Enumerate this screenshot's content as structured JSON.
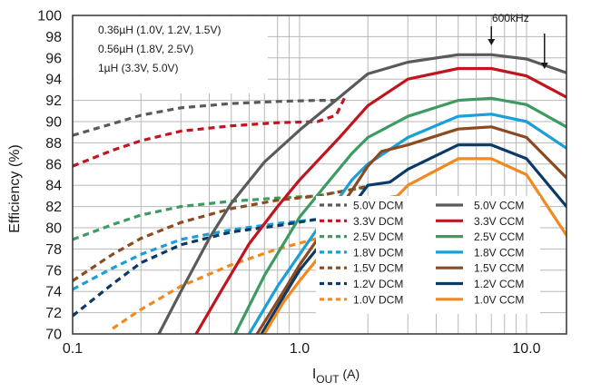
{
  "chart_data": {
    "type": "line",
    "xlabel": "I",
    "xlabel_sub": "OUT",
    "xlabel_unit": " (A)",
    "ylabel": "Efficiency (%)",
    "xscale": "log",
    "xlim": [
      0.1,
      15
    ],
    "ylim": [
      70,
      100
    ],
    "grid": true,
    "x_ticks": [
      {
        "value": 0.1,
        "label": "0.1"
      },
      {
        "value": 1.0,
        "label": "1.0"
      },
      {
        "value": 10.0,
        "label": "10.0"
      }
    ],
    "y_ticks": [
      70,
      72,
      74,
      76,
      78,
      80,
      82,
      84,
      86,
      88,
      90,
      92,
      94,
      96,
      98,
      100
    ],
    "inductor_notes": [
      "0.36µH (1.0V, 1.2V, 1.5V)",
      "0.56µH (1.8V, 2.5V)",
      "1µH (3.3V, 5.0V)"
    ],
    "annotation": {
      "text": "600kHz",
      "arrows_at_x": [
        7.0,
        12.0
      ]
    },
    "legend_position": "lower-right",
    "series": [
      {
        "name": "5.0V DCM",
        "style": "dashed",
        "color": "#5a5a5a",
        "points": [
          [
            0.1,
            88.7
          ],
          [
            0.15,
            89.8
          ],
          [
            0.2,
            90.6
          ],
          [
            0.3,
            91.3
          ],
          [
            0.5,
            91.7
          ],
          [
            0.8,
            91.9
          ],
          [
            1.2,
            92.0
          ],
          [
            1.5,
            92.0
          ]
        ]
      },
      {
        "name": "3.3V DCM",
        "style": "dashed",
        "color": "#c0141e",
        "points": [
          [
            0.1,
            85.8
          ],
          [
            0.15,
            87.3
          ],
          [
            0.2,
            88.2
          ],
          [
            0.3,
            89.1
          ],
          [
            0.5,
            89.6
          ],
          [
            0.8,
            89.9
          ],
          [
            1.2,
            90.0
          ],
          [
            1.45,
            90.6
          ],
          [
            1.6,
            92.5
          ]
        ]
      },
      {
        "name": "2.5V DCM",
        "style": "dashed",
        "color": "#3d9b62",
        "points": [
          [
            0.1,
            78.9
          ],
          [
            0.15,
            80.3
          ],
          [
            0.2,
            81.2
          ],
          [
            0.3,
            82.0
          ],
          [
            0.5,
            82.5
          ],
          [
            0.8,
            82.8
          ],
          [
            1.2,
            83.0
          ],
          [
            1.6,
            83.5
          ],
          [
            2.0,
            83.8
          ]
        ]
      },
      {
        "name": "1.8V DCM",
        "style": "dashed",
        "color": "#1a9fd8",
        "points": [
          [
            0.1,
            74.2
          ],
          [
            0.15,
            76.2
          ],
          [
            0.2,
            77.5
          ],
          [
            0.3,
            78.9
          ],
          [
            0.5,
            79.8
          ],
          [
            0.8,
            80.4
          ],
          [
            1.2,
            80.8
          ],
          [
            1.4,
            81.5
          ]
        ]
      },
      {
        "name": "1.5V DCM",
        "style": "dashed",
        "color": "#8c4a20",
        "points": [
          [
            0.1,
            75.0
          ],
          [
            0.15,
            77.5
          ],
          [
            0.2,
            79.0
          ],
          [
            0.3,
            80.5
          ],
          [
            0.5,
            81.8
          ],
          [
            0.8,
            82.6
          ],
          [
            1.2,
            83.0
          ],
          [
            1.6,
            83.5
          ],
          [
            2.0,
            83.9
          ]
        ]
      },
      {
        "name": "1.2V DCM",
        "style": "dashed",
        "color": "#0b3a66",
        "points": [
          [
            0.1,
            71.7
          ],
          [
            0.15,
            74.7
          ],
          [
            0.2,
            76.7
          ],
          [
            0.3,
            78.4
          ],
          [
            0.5,
            79.6
          ],
          [
            0.8,
            80.2
          ],
          [
            1.2,
            80.8
          ],
          [
            1.6,
            81.5
          ],
          [
            1.8,
            82.5
          ]
        ]
      },
      {
        "name": "1.0V DCM",
        "style": "dashed",
        "color": "#f08a1e",
        "points": [
          [
            0.15,
            70.5
          ],
          [
            0.2,
            72.3
          ],
          [
            0.3,
            74.5
          ],
          [
            0.5,
            76.5
          ],
          [
            0.8,
            78.0
          ],
          [
            1.2,
            79.0
          ],
          [
            1.6,
            79.7
          ],
          [
            1.9,
            80.3
          ]
        ]
      },
      {
        "name": "5.0V CCM",
        "style": "solid",
        "color": "#5a5a5a",
        "points": [
          [
            0.24,
            70.0
          ],
          [
            0.3,
            74.0
          ],
          [
            0.4,
            79.0
          ],
          [
            0.5,
            82.3
          ],
          [
            0.7,
            86.2
          ],
          [
            1.0,
            89.2
          ],
          [
            1.5,
            92.3
          ],
          [
            2.0,
            94.5
          ],
          [
            3.0,
            95.6
          ],
          [
            5.0,
            96.3
          ],
          [
            7.0,
            96.3
          ],
          [
            10.0,
            95.9
          ],
          [
            15.0,
            94.6
          ]
        ]
      },
      {
        "name": "3.3V CCM",
        "style": "solid",
        "color": "#c0141e",
        "points": [
          [
            0.35,
            70.0
          ],
          [
            0.45,
            74.0
          ],
          [
            0.6,
            78.5
          ],
          [
            0.8,
            82.0
          ],
          [
            1.0,
            84.5
          ],
          [
            1.5,
            88.5
          ],
          [
            2.0,
            91.5
          ],
          [
            3.0,
            94.0
          ],
          [
            5.0,
            95.0
          ],
          [
            7.0,
            95.0
          ],
          [
            10.0,
            94.3
          ],
          [
            15.0,
            92.3
          ]
        ]
      },
      {
        "name": "2.5V CCM",
        "style": "solid",
        "color": "#3d9b62",
        "points": [
          [
            0.52,
            70.0
          ],
          [
            0.7,
            75.5
          ],
          [
            1.0,
            81.0
          ],
          [
            1.3,
            84.0
          ],
          [
            1.7,
            87.0
          ],
          [
            2.0,
            88.5
          ],
          [
            3.0,
            90.5
          ],
          [
            5.0,
            92.0
          ],
          [
            7.0,
            92.2
          ],
          [
            10.0,
            91.6
          ],
          [
            15.0,
            89.5
          ]
        ]
      },
      {
        "name": "1.8V CCM",
        "style": "solid",
        "color": "#1a9fd8",
        "points": [
          [
            0.6,
            70.0
          ],
          [
            0.8,
            74.5
          ],
          [
            1.0,
            77.5
          ],
          [
            1.3,
            81.0
          ],
          [
            1.7,
            84.5
          ],
          [
            2.0,
            86.0
          ],
          [
            3.0,
            88.5
          ],
          [
            5.0,
            90.5
          ],
          [
            7.0,
            90.7
          ],
          [
            10.0,
            90.0
          ],
          [
            15.0,
            87.5
          ]
        ]
      },
      {
        "name": "1.5V CCM",
        "style": "solid",
        "color": "#8c4a20",
        "points": [
          [
            0.65,
            70.0
          ],
          [
            0.85,
            74.0
          ],
          [
            1.0,
            76.5
          ],
          [
            1.3,
            80.0
          ],
          [
            1.7,
            83.5
          ],
          [
            2.0,
            85.8
          ],
          [
            2.3,
            87.2
          ],
          [
            3.0,
            87.8
          ],
          [
            5.0,
            89.3
          ],
          [
            7.0,
            89.5
          ],
          [
            10.0,
            88.5
          ],
          [
            15.0,
            84.7
          ]
        ]
      },
      {
        "name": "1.2V CCM",
        "style": "solid",
        "color": "#0b3a66",
        "points": [
          [
            0.68,
            70.0
          ],
          [
            0.85,
            73.5
          ],
          [
            1.0,
            76.0
          ],
          [
            1.3,
            79.0
          ],
          [
            1.7,
            82.0
          ],
          [
            2.0,
            84.0
          ],
          [
            2.5,
            84.3
          ],
          [
            3.0,
            85.5
          ],
          [
            5.0,
            87.8
          ],
          [
            7.0,
            87.8
          ],
          [
            10.0,
            86.5
          ],
          [
            15.0,
            82.0
          ]
        ]
      },
      {
        "name": "1.0V CCM",
        "style": "solid",
        "color": "#f08a1e",
        "points": [
          [
            0.7,
            70.0
          ],
          [
            0.85,
            73.0
          ],
          [
            1.0,
            75.0
          ],
          [
            1.3,
            78.0
          ],
          [
            1.7,
            81.0
          ],
          [
            2.0,
            82.5
          ],
          [
            2.7,
            83.0
          ],
          [
            3.0,
            84.0
          ],
          [
            5.0,
            86.5
          ],
          [
            7.0,
            86.5
          ],
          [
            10.0,
            85.0
          ],
          [
            15.0,
            79.3
          ]
        ]
      }
    ]
  }
}
